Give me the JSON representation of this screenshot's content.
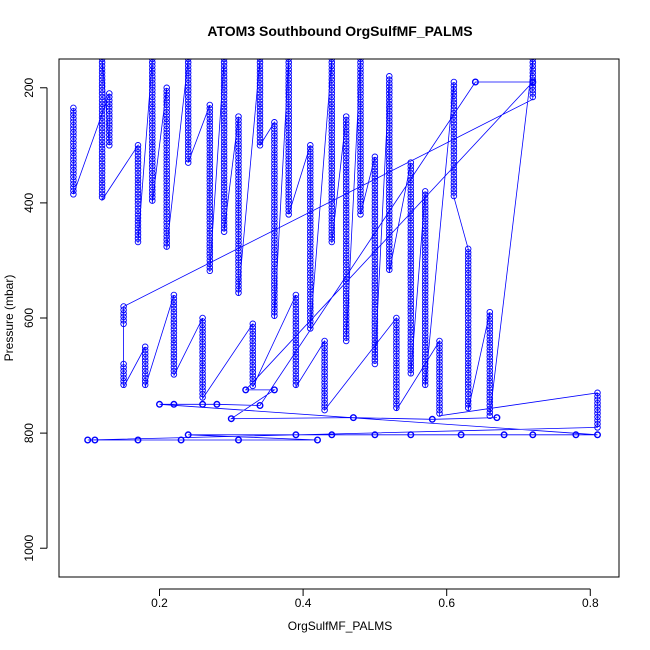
{
  "chart_data": {
    "type": "scatter",
    "title": "ATOM3 Southbound OrgSulfMF_PALMS",
    "xlabel": "OrgSulfMF_PALMS",
    "ylabel": "Pressure (mbar)",
    "xlim": [
      0.06,
      0.84
    ],
    "ylim": [
      1050,
      150
    ],
    "y_reversed": true,
    "x_ticks": [
      0.2,
      0.4,
      0.6,
      0.8
    ],
    "y_ticks": [
      200,
      400,
      600,
      800,
      1000
    ],
    "x_tick_labels": [
      "0.2",
      "0.4",
      "0.6",
      "0.8"
    ],
    "y_tick_labels": [
      "200",
      "400",
      "600",
      "800",
      "1000"
    ],
    "grid": false,
    "legend": "none",
    "marker": "open-circle",
    "connect_points": true,
    "color": "#0000ff",
    "series": [
      {
        "profiles": [
          {
            "x": 0.08,
            "p_top": 235,
            "p_bottom": 385
          },
          {
            "x": 0.13,
            "p_top": 210,
            "p_bottom": 300
          },
          {
            "x": 0.12,
            "p_top": 150,
            "p_bottom": 395
          },
          {
            "x": 0.17,
            "p_top": 300,
            "p_bottom": 470
          },
          {
            "x": 0.19,
            "p_top": 150,
            "p_bottom": 400
          },
          {
            "x": 0.21,
            "p_top": 200,
            "p_bottom": 480
          },
          {
            "x": 0.24,
            "p_top": 150,
            "p_bottom": 330
          },
          {
            "x": 0.27,
            "p_top": 230,
            "p_bottom": 520
          },
          {
            "x": 0.29,
            "p_top": 150,
            "p_bottom": 450
          },
          {
            "x": 0.31,
            "p_top": 250,
            "p_bottom": 560
          },
          {
            "x": 0.34,
            "p_top": 150,
            "p_bottom": 300
          },
          {
            "x": 0.36,
            "p_top": 260,
            "p_bottom": 600
          },
          {
            "x": 0.38,
            "p_top": 150,
            "p_bottom": 420
          },
          {
            "x": 0.41,
            "p_top": 300,
            "p_bottom": 620
          },
          {
            "x": 0.44,
            "p_top": 150,
            "p_bottom": 470
          },
          {
            "x": 0.46,
            "p_top": 250,
            "p_bottom": 640
          },
          {
            "x": 0.48,
            "p_top": 150,
            "p_bottom": 420
          },
          {
            "x": 0.5,
            "p_top": 320,
            "p_bottom": 680
          },
          {
            "x": 0.52,
            "p_top": 180,
            "p_bottom": 520
          },
          {
            "x": 0.55,
            "p_top": 330,
            "p_bottom": 700
          },
          {
            "x": 0.57,
            "p_top": 380,
            "p_bottom": 720
          },
          {
            "x": 0.61,
            "p_top": 190,
            "p_bottom": 390
          },
          {
            "x": 0.63,
            "p_top": 480,
            "p_bottom": 760
          },
          {
            "x": 0.66,
            "p_top": 590,
            "p_bottom": 770
          },
          {
            "x": 0.72,
            "p_top": 150,
            "p_bottom": 220
          },
          {
            "x": 0.15,
            "p_top": 580,
            "p_bottom": 610
          },
          {
            "x": 0.15,
            "p_top": 680,
            "p_bottom": 720
          },
          {
            "x": 0.18,
            "p_top": 650,
            "p_bottom": 720
          },
          {
            "x": 0.22,
            "p_top": 560,
            "p_bottom": 700
          },
          {
            "x": 0.26,
            "p_top": 600,
            "p_bottom": 740
          },
          {
            "x": 0.33,
            "p_top": 610,
            "p_bottom": 720
          },
          {
            "x": 0.39,
            "p_top": 560,
            "p_bottom": 720
          },
          {
            "x": 0.43,
            "p_top": 640,
            "p_bottom": 760
          },
          {
            "x": 0.53,
            "p_top": 600,
            "p_bottom": 760
          },
          {
            "x": 0.59,
            "p_top": 640,
            "p_bottom": 770
          },
          {
            "x": 0.81,
            "p_top": 730,
            "p_bottom": 790
          }
        ],
        "points": [
          {
            "x": 0.1,
            "y": 812
          },
          {
            "x": 0.11,
            "y": 812
          },
          {
            "x": 0.17,
            "y": 812
          },
          {
            "x": 0.23,
            "y": 812
          },
          {
            "x": 0.31,
            "y": 812
          },
          {
            "x": 0.42,
            "y": 812
          },
          {
            "x": 0.24,
            "y": 803
          },
          {
            "x": 0.39,
            "y": 803
          },
          {
            "x": 0.44,
            "y": 803
          },
          {
            "x": 0.5,
            "y": 803
          },
          {
            "x": 0.55,
            "y": 803
          },
          {
            "x": 0.62,
            "y": 803
          },
          {
            "x": 0.68,
            "y": 803
          },
          {
            "x": 0.72,
            "y": 803
          },
          {
            "x": 0.78,
            "y": 803
          },
          {
            "x": 0.81,
            "y": 803
          },
          {
            "x": 0.2,
            "y": 750
          },
          {
            "x": 0.22,
            "y": 750
          },
          {
            "x": 0.26,
            "y": 750
          },
          {
            "x": 0.28,
            "y": 750
          },
          {
            "x": 0.34,
            "y": 752
          },
          {
            "x": 0.64,
            "y": 190
          },
          {
            "x": 0.72,
            "y": 190
          },
          {
            "x": 0.32,
            "y": 725
          },
          {
            "x": 0.36,
            "y": 725
          },
          {
            "x": 0.3,
            "y": 775
          },
          {
            "x": 0.47,
            "y": 773
          },
          {
            "x": 0.58,
            "y": 776
          },
          {
            "x": 0.67,
            "y": 773
          }
        ]
      }
    ]
  }
}
